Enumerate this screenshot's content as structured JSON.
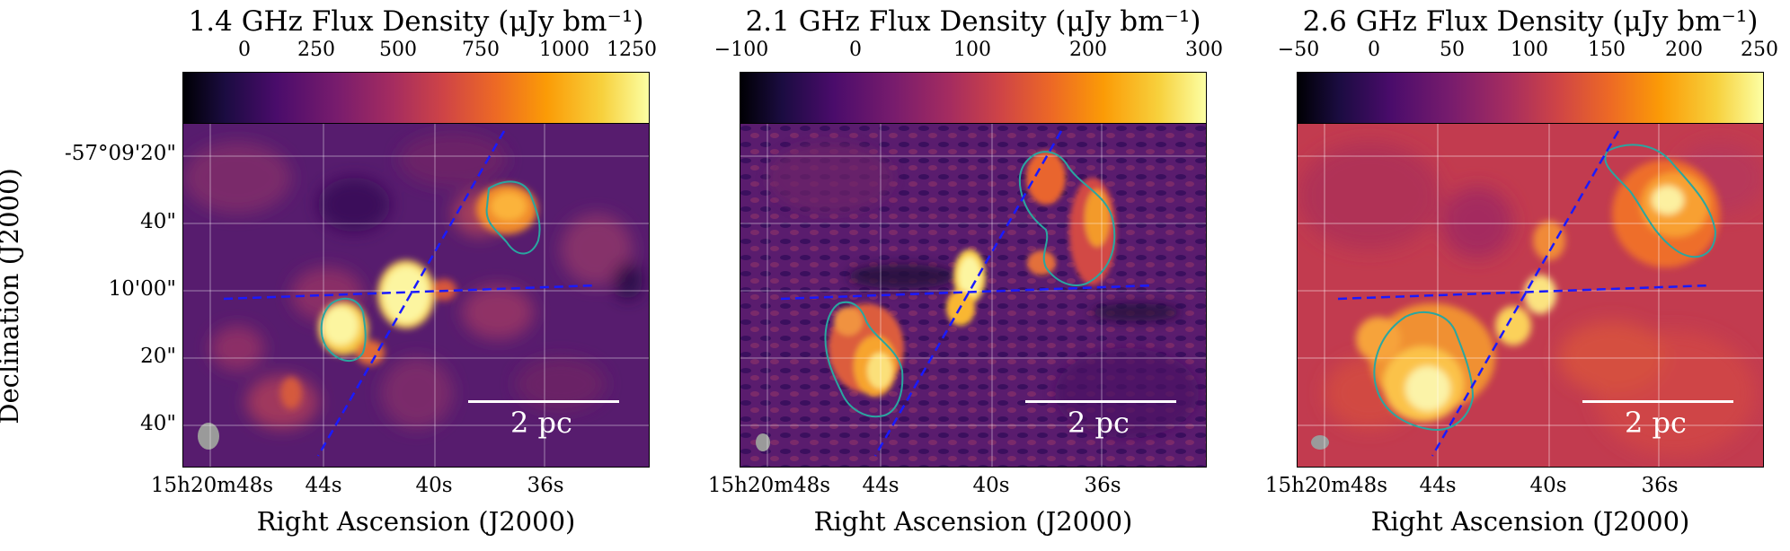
{
  "y_axis": {
    "label": "Declination (J2000)",
    "ticks": [
      "-57°09'20\"",
      "40\"",
      "10'00\"",
      "20\"",
      "40\""
    ]
  },
  "x_axis": {
    "label": "Right Ascension (J2000)",
    "ticks": [
      "15h20m48s",
      "44s",
      "40s",
      "36s"
    ]
  },
  "scale_bar": {
    "label": "2 pc"
  },
  "panels": [
    {
      "title": "1.4 GHz Flux Density (μJy bm⁻¹)",
      "colorbar_ticks": [
        "0",
        "250",
        "500",
        "750",
        "1000",
        "1250"
      ]
    },
    {
      "title": "2.1 GHz Flux Density (μJy bm⁻¹)",
      "colorbar_ticks": [
        "−100",
        "0",
        "100",
        "200",
        "300"
      ]
    },
    {
      "title": "2.6 GHz Flux Density (μJy bm⁻¹)",
      "colorbar_ticks": [
        "−50",
        "0",
        "50",
        "100",
        "150",
        "200",
        "250"
      ]
    }
  ],
  "colors": {
    "colormap": "inferno",
    "contour": "#2aa6a0",
    "guide_lines": "#1a1aff",
    "grid": "#ffffff"
  }
}
